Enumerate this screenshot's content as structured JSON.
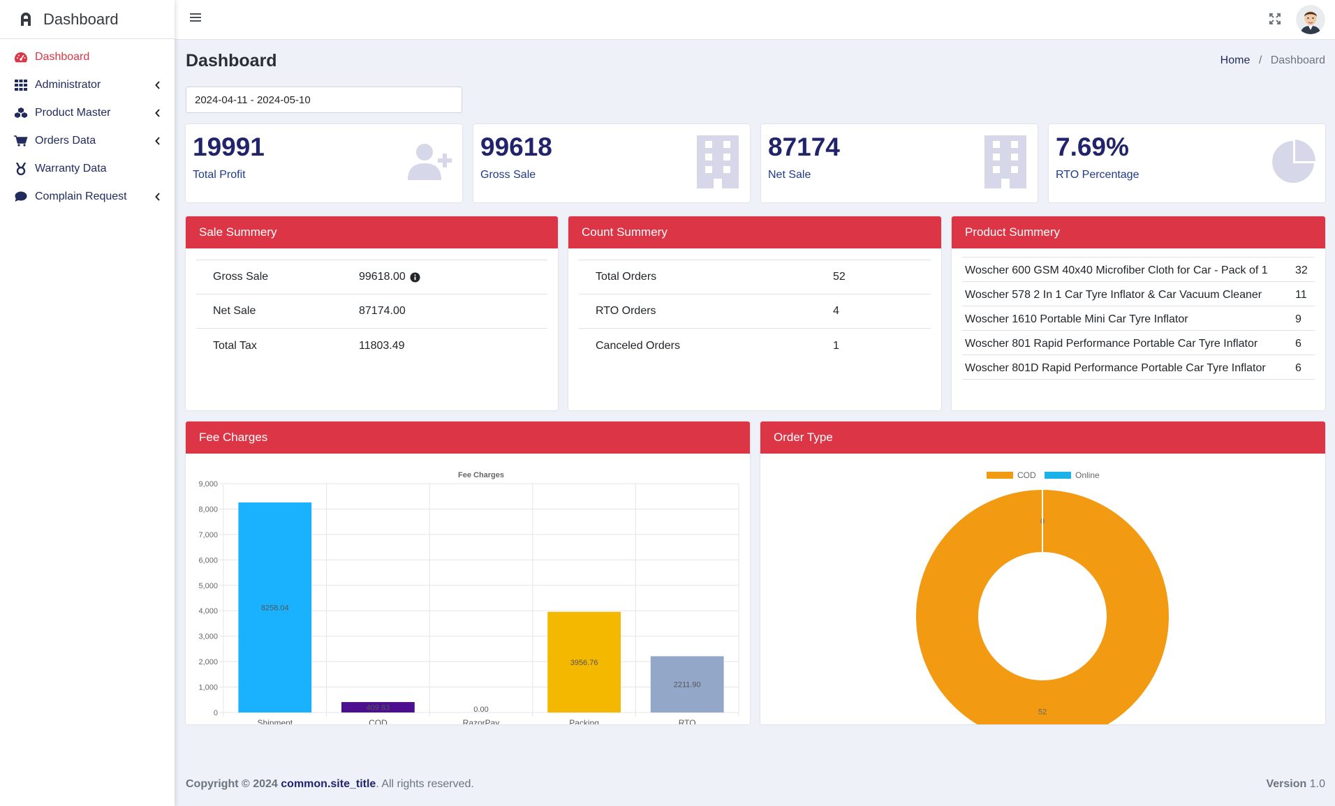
{
  "brand": {
    "title": "Dashboard"
  },
  "sidebar": {
    "items": [
      {
        "label": "Dashboard",
        "active": true
      },
      {
        "label": "Administrator"
      },
      {
        "label": "Product Master"
      },
      {
        "label": "Orders Data"
      },
      {
        "label": "Warranty Data"
      },
      {
        "label": "Complain Request"
      }
    ]
  },
  "page": {
    "title": "Dashboard",
    "breadcrumb": {
      "home": "Home",
      "separator": "/",
      "current": "Dashboard"
    },
    "date_range": "2024-04-11 - 2024-05-10"
  },
  "stats": [
    {
      "value": "19991",
      "label": "Total Profit",
      "icon": "user-plus-icon"
    },
    {
      "value": "99618",
      "label": "Gross Sale",
      "icon": "building-icon"
    },
    {
      "value": "87174",
      "label": "Net Sale",
      "icon": "building-icon"
    },
    {
      "value": "7.69%",
      "label": "RTO Percentage",
      "icon": "pie-chart-icon"
    }
  ],
  "sale_summary": {
    "title": "Sale Summery",
    "rows": [
      {
        "label": "Gross Sale",
        "value": "99618.00"
      },
      {
        "label": "Net Sale",
        "value": "87174.00"
      },
      {
        "label": "Total Tax",
        "value": "11803.49"
      }
    ]
  },
  "count_summary": {
    "title": "Count Summery",
    "rows": [
      {
        "label": "Total Orders",
        "value": "52"
      },
      {
        "label": "RTO Orders",
        "value": "4"
      },
      {
        "label": "Canceled Orders",
        "value": "1"
      }
    ]
  },
  "product_summary": {
    "title": "Product Summery",
    "rows": [
      {
        "name": "Woscher 600 GSM 40x40 Microfiber Cloth for Car - Pack of 1",
        "count": "32"
      },
      {
        "name": "Woscher 578 2 In 1 Car Tyre Inflator & Car Vacuum Cleaner",
        "count": "11"
      },
      {
        "name": "Woscher 1610 Portable Mini Car Tyre Inflator",
        "count": "9"
      },
      {
        "name": "Woscher 801 Rapid Performance Portable Car Tyre Inflator",
        "count": "6"
      },
      {
        "name": "Woscher 801D Rapid Performance Portable Car Tyre Inflator",
        "count": "6"
      }
    ]
  },
  "fee_charges": {
    "title": "Fee Charges"
  },
  "order_type": {
    "title": "Order Type"
  },
  "colors": {
    "accent": "#dc3545",
    "navy": "#21246b",
    "stat_icon": "#d6d8ea"
  },
  "chart_data": [
    {
      "type": "bar",
      "title": "Fee Charges",
      "categories": [
        "Shipment",
        "COD",
        "RazorPay",
        "Packing",
        "RTO"
      ],
      "values": [
        8258.04,
        409.83,
        0.0,
        3956.76,
        2211.9
      ],
      "value_labels": [
        "8258.04",
        "409.83",
        "0.00",
        "3956.76",
        "2211.90"
      ],
      "colors": [
        "#1ab2ff",
        "#4b0f8f",
        "#9e9e9e",
        "#f5b800",
        "#93a7c9"
      ],
      "ylim": [
        0,
        9000
      ],
      "yticks": [
        "0",
        "1,000",
        "2,000",
        "3,000",
        "4,000",
        "5,000",
        "6,000",
        "7,000",
        "8,000",
        "9,000"
      ],
      "grid": true,
      "xlabel": "",
      "ylabel": ""
    },
    {
      "type": "pie",
      "variant": "doughnut",
      "labels": [
        "COD",
        "Online"
      ],
      "values": [
        52,
        0
      ],
      "colors": [
        "#f29b12",
        "#1ab2e8"
      ],
      "legend": "top"
    }
  ],
  "footer": {
    "copyright_prefix": "Copyright © 2024",
    "site": "common.site_title",
    "rights": ". All rights reserved.",
    "version_label": "Version",
    "version": "1.0"
  }
}
